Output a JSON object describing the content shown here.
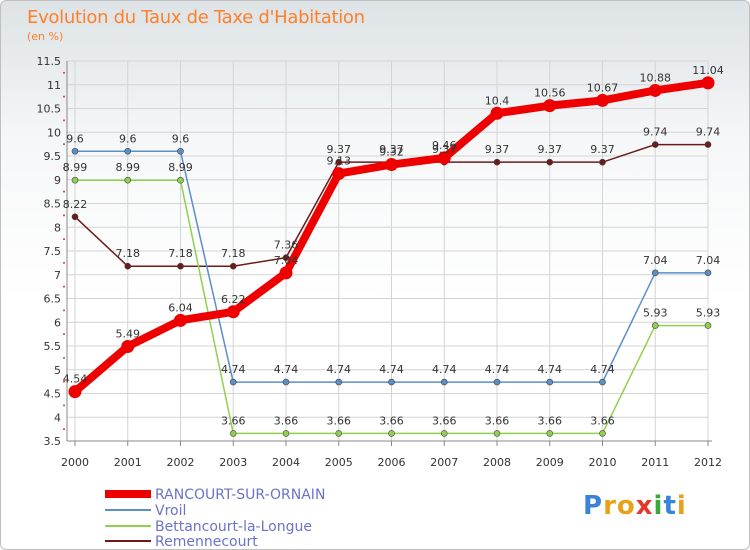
{
  "chart_data": {
    "type": "line",
    "title": "Evolution du Taux de Taxe d'Habitation",
    "unit_label": "(en %)",
    "x": [
      "2000",
      "2001",
      "2002",
      "2003",
      "2004",
      "2005",
      "2006",
      "2007",
      "2008",
      "2009",
      "2010",
      "2011",
      "2012"
    ],
    "ylim": [
      3.5,
      11.5
    ],
    "yticks": [
      "3.5",
      "4",
      "4.5",
      "5",
      "5.5",
      "6",
      "6.5",
      "7",
      "7.5",
      "8",
      "8.5",
      "9",
      "9.5",
      "10",
      "10.5",
      "11",
      "11.5"
    ],
    "grid": true,
    "legend_position": "bottom-left",
    "series": [
      {
        "name": "RANCOURT-SUR-ORNAIN",
        "color": "#ee0000",
        "values": [
          4.54,
          5.49,
          6.04,
          6.22,
          7.04,
          9.13,
          9.32,
          9.46,
          10.4,
          10.56,
          10.67,
          10.88,
          11.04
        ],
        "labels": [
          "4.54",
          "5.49",
          "6.04",
          "6.22",
          "7.04",
          "9.13",
          "9.32",
          "9.46",
          "10.4",
          "10.56",
          "10.67",
          "10.88",
          "11.04"
        ]
      },
      {
        "name": "Vroil",
        "color": "#5b8fc7",
        "values": [
          9.6,
          9.6,
          9.6,
          4.74,
          4.74,
          4.74,
          4.74,
          4.74,
          4.74,
          4.74,
          4.74,
          7.04,
          7.04
        ],
        "labels": [
          "9.6",
          "9.6",
          "9.6",
          "4.74",
          "4.74",
          "4.74",
          "4.74",
          "4.74",
          "4.74",
          "4.74",
          "4.74",
          "7.04",
          "7.04"
        ]
      },
      {
        "name": "Bettancourt-la-Longue",
        "color": "#8fd14f",
        "values": [
          8.99,
          8.99,
          8.99,
          3.66,
          3.66,
          3.66,
          3.66,
          3.66,
          3.66,
          3.66,
          3.66,
          5.93,
          5.93
        ],
        "labels": [
          "8.99",
          "8.99",
          "8.99",
          "3.66",
          "3.66",
          "3.66",
          "3.66",
          "3.66",
          "3.66",
          "3.66",
          "3.66",
          "5.93",
          "5.93"
        ]
      },
      {
        "name": "Remennecourt",
        "color": "#6e1a1a",
        "values": [
          8.22,
          7.18,
          7.18,
          7.18,
          7.36,
          9.37,
          9.37,
          9.37,
          9.37,
          9.37,
          9.37,
          9.74,
          9.74
        ],
        "labels": [
          "8.22",
          "7.18",
          "7.18",
          "7.18",
          "7.36",
          "9.37",
          "9.37",
          "9.37",
          "9.37",
          "9.37",
          "9.37",
          "9.74",
          "9.74"
        ]
      }
    ]
  },
  "logo": {
    "text": "Proxiti",
    "letters": [
      {
        "ch": "P",
        "color": "#3a84d6"
      },
      {
        "ch": "r",
        "color": "#e8a21a"
      },
      {
        "ch": "o",
        "color": "#e8a21a"
      },
      {
        "ch": "x",
        "color": "#e23a2a"
      },
      {
        "ch": "i",
        "color": "#3aa83a"
      },
      {
        "ch": "t",
        "color": "#3a84d6"
      },
      {
        "ch": "i",
        "color": "#e8a21a"
      }
    ]
  }
}
